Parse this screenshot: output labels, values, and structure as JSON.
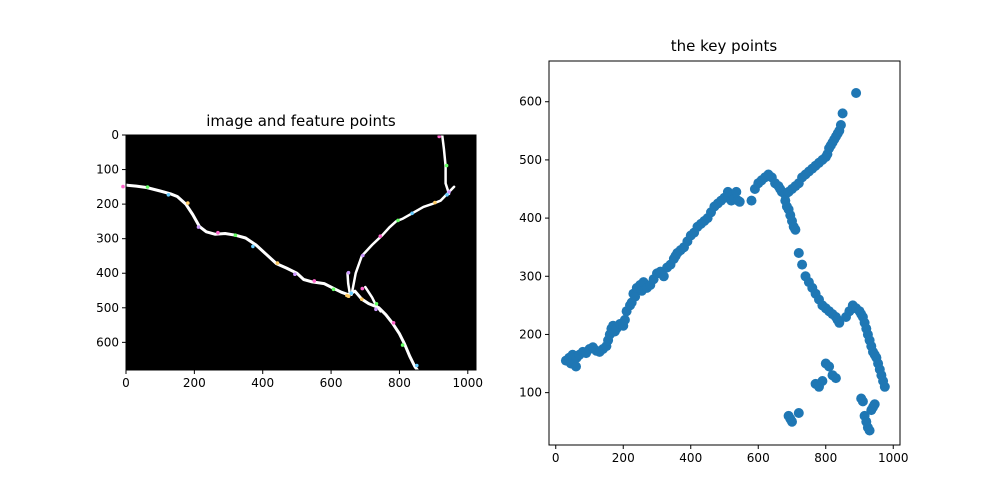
{
  "chart_data": [
    {
      "type": "image",
      "title": "image and feature points",
      "xlim": [
        0,
        1024
      ],
      "ylim": [
        680,
        0
      ],
      "x_ticks": [
        0,
        200,
        400,
        600,
        800,
        1000
      ],
      "y_ticks": [
        0,
        100,
        200,
        300,
        400,
        500,
        600
      ],
      "background_color": "#000000",
      "vessel_color": "#ffffff",
      "feature_colors": [
        "#ff66cc",
        "#66ff66",
        "#66ccff",
        "#ffcc66",
        "#cc99ff"
      ],
      "vessel_paths": [
        [
          [
            0,
            145
          ],
          [
            30,
            148
          ],
          [
            60,
            152
          ],
          [
            100,
            162
          ],
          [
            130,
            170
          ],
          [
            150,
            178
          ],
          [
            175,
            200
          ],
          [
            195,
            230
          ],
          [
            215,
            265
          ],
          [
            235,
            280
          ],
          [
            260,
            287
          ],
          [
            290,
            285
          ],
          [
            320,
            290
          ],
          [
            350,
            298
          ],
          [
            380,
            318
          ],
          [
            410,
            345
          ],
          [
            440,
            372
          ],
          [
            470,
            385
          ],
          [
            500,
            400
          ],
          [
            520,
            418
          ],
          [
            545,
            425
          ],
          [
            580,
            430
          ],
          [
            610,
            445
          ],
          [
            630,
            455
          ],
          [
            650,
            462
          ],
          [
            670,
            452
          ],
          [
            690,
            475
          ],
          [
            710,
            488
          ],
          [
            740,
            500
          ],
          [
            760,
            520
          ],
          [
            780,
            545
          ],
          [
            800,
            575
          ],
          [
            815,
            605
          ],
          [
            830,
            640
          ],
          [
            845,
            670
          ],
          [
            860,
            690
          ]
        ],
        [
          [
            660,
            462
          ],
          [
            672,
            400
          ],
          [
            690,
            350
          ],
          [
            720,
            318
          ],
          [
            750,
            290
          ],
          [
            770,
            268
          ],
          [
            790,
            250
          ],
          [
            810,
            242
          ],
          [
            840,
            225
          ],
          [
            870,
            208
          ],
          [
            895,
            200
          ],
          [
            920,
            190
          ],
          [
            945,
            165
          ],
          [
            960,
            150
          ]
        ],
        [
          [
            925,
            0
          ],
          [
            930,
            40
          ],
          [
            935,
            90
          ],
          [
            935,
            140
          ],
          [
            945,
            170
          ]
        ],
        [
          [
            655,
            460
          ],
          [
            650,
            430
          ],
          [
            648,
            400
          ]
        ],
        [
          [
            700,
            440
          ],
          [
            720,
            470
          ],
          [
            730,
            490
          ],
          [
            745,
            510
          ]
        ]
      ]
    },
    {
      "type": "scatter",
      "title": "the key points",
      "xlim": [
        -20,
        1020
      ],
      "ylim": [
        10,
        670
      ],
      "x_ticks": [
        0,
        200,
        400,
        600,
        800,
        1000
      ],
      "y_ticks": [
        100,
        200,
        300,
        400,
        500,
        600
      ],
      "marker_color": "#1f77b4",
      "x": [
        30,
        40,
        45,
        50,
        60,
        62,
        70,
        80,
        90,
        100,
        110,
        120,
        130,
        140,
        150,
        155,
        160,
        165,
        170,
        175,
        180,
        190,
        200,
        205,
        210,
        220,
        225,
        230,
        235,
        240,
        250,
        255,
        260,
        270,
        280,
        290,
        300,
        310,
        320,
        330,
        340,
        350,
        355,
        360,
        370,
        380,
        390,
        400,
        410,
        420,
        430,
        440,
        450,
        460,
        470,
        480,
        490,
        500,
        510,
        520,
        525,
        530,
        535,
        540,
        545,
        580,
        590,
        600,
        610,
        620,
        630,
        640,
        650,
        660,
        665,
        670,
        680,
        690,
        700,
        710,
        720,
        730,
        740,
        750,
        760,
        770,
        780,
        790,
        800,
        805,
        810,
        815,
        820,
        825,
        830,
        835,
        840,
        845,
        850,
        890,
        680,
        685,
        690,
        695,
        700,
        705,
        710,
        720,
        730,
        740,
        750,
        760,
        770,
        780,
        790,
        800,
        810,
        820,
        830,
        835,
        840,
        860,
        870,
        880,
        890,
        900,
        905,
        910,
        915,
        920,
        925,
        930,
        935,
        940,
        945,
        950,
        955,
        960,
        965,
        970,
        975,
        690,
        695,
        700,
        720,
        770,
        780,
        790,
        800,
        810,
        820,
        830,
        905,
        910,
        915,
        920,
        925,
        930,
        935,
        940,
        945
      ],
      "y": [
        155,
        160,
        150,
        165,
        145,
        160,
        165,
        170,
        168,
        175,
        178,
        172,
        170,
        175,
        180,
        190,
        200,
        210,
        215,
        205,
        210,
        218,
        215,
        225,
        240,
        250,
        255,
        270,
        265,
        280,
        285,
        275,
        290,
        280,
        285,
        295,
        305,
        308,
        300,
        315,
        320,
        330,
        335,
        340,
        345,
        350,
        360,
        370,
        375,
        385,
        390,
        395,
        400,
        410,
        420,
        425,
        430,
        435,
        445,
        430,
        440,
        435,
        445,
        430,
        428,
        430,
        450,
        460,
        465,
        470,
        475,
        470,
        460,
        455,
        450,
        445,
        440,
        445,
        450,
        455,
        460,
        470,
        475,
        480,
        485,
        490,
        495,
        500,
        505,
        510,
        520,
        525,
        530,
        535,
        540,
        545,
        550,
        560,
        580,
        615,
        430,
        420,
        415,
        405,
        395,
        385,
        380,
        340,
        320,
        300,
        290,
        280,
        270,
        260,
        250,
        245,
        240,
        235,
        230,
        225,
        220,
        230,
        240,
        250,
        245,
        240,
        235,
        230,
        220,
        210,
        200,
        190,
        180,
        170,
        165,
        160,
        150,
        140,
        130,
        120,
        110,
        60,
        55,
        50,
        65,
        115,
        110,
        120,
        150,
        145,
        130,
        125,
        90,
        85,
        60,
        50,
        40,
        35,
        70,
        75,
        80
      ]
    }
  ]
}
